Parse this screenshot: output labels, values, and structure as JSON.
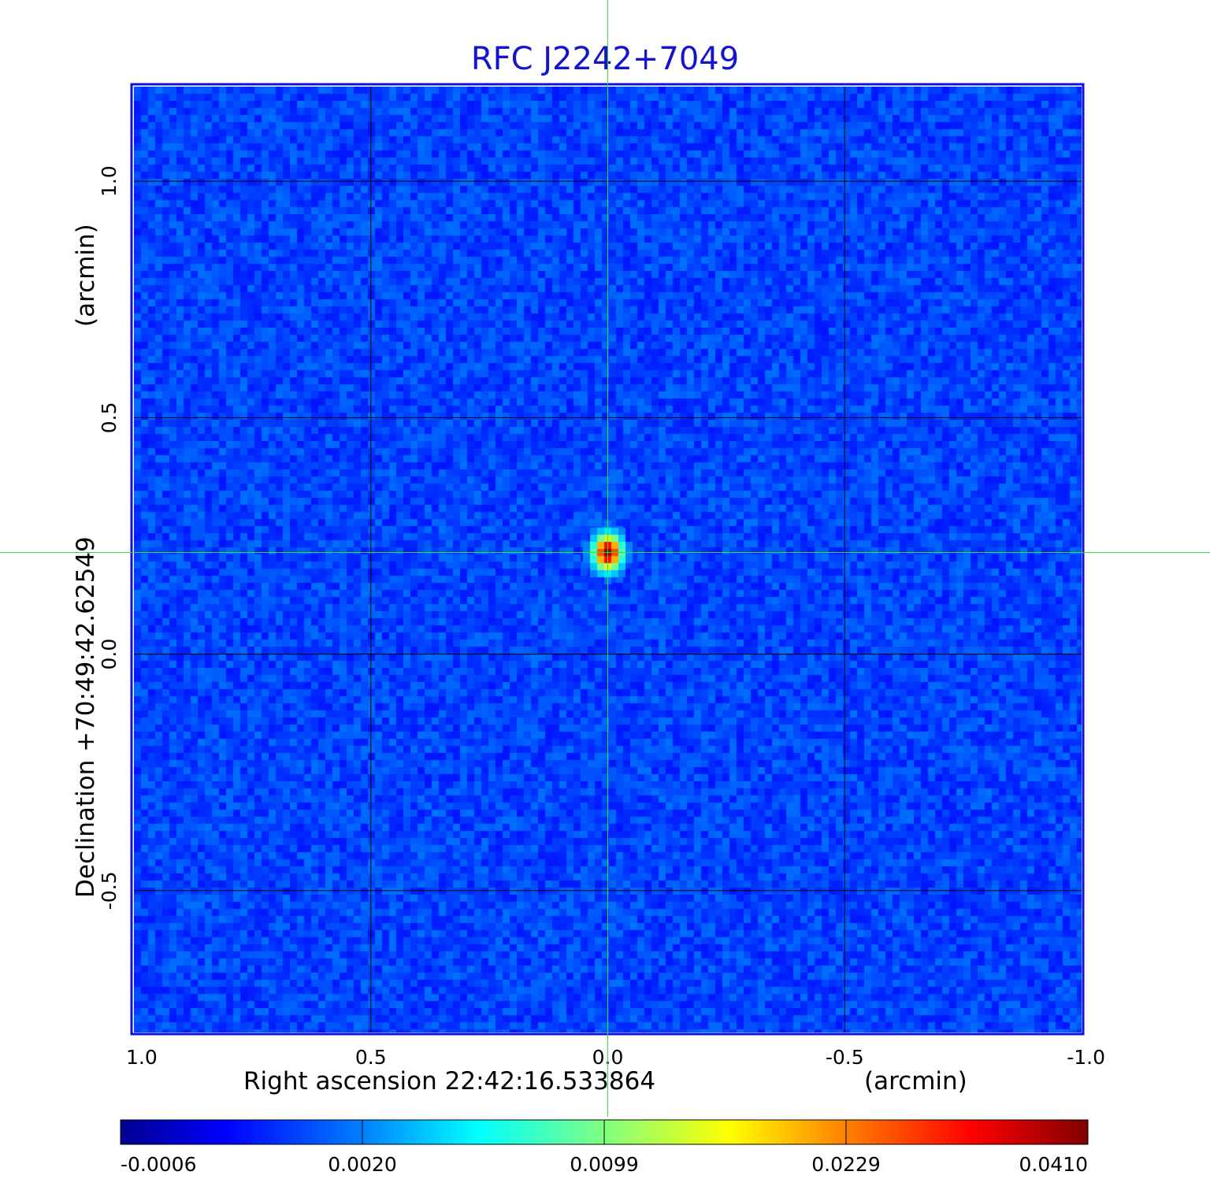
{
  "chart_data": {
    "type": "heatmap",
    "title": "RFC J2242+7049",
    "xlabel": "Right ascension  22:42:16.533864",
    "xunit": "(arcmin)",
    "ylabel": "Declination  +70:49:42.62549",
    "yunit": "(arcmin)",
    "xlim": [
      1.0,
      -1.0
    ],
    "ylim": [
      -0.8,
      1.2
    ],
    "x_ticks": [
      "1.0",
      "0.5",
      "0.0",
      "-0.5",
      "-1.0"
    ],
    "x_tick_values": [
      1.0,
      0.5,
      0.0,
      -0.5,
      -1.0
    ],
    "y_ticks": [
      "1.0",
      "0.5",
      "0.0",
      "-0.5"
    ],
    "y_tick_values": [
      1.0,
      0.5,
      0.0,
      -0.5
    ],
    "grid": true,
    "crosshair": {
      "x": 0.0,
      "y": 0.215,
      "color": "#33dd33"
    },
    "source": {
      "x": 0.0,
      "y": 0.215,
      "peak": 0.041
    },
    "colorbar": {
      "ticks": [
        "-0.0006",
        "0.0020",
        "0.0099",
        "0.0229",
        "0.0410"
      ],
      "colormap": "jet",
      "position": "bottom"
    },
    "frame_color": "#1010dd"
  }
}
